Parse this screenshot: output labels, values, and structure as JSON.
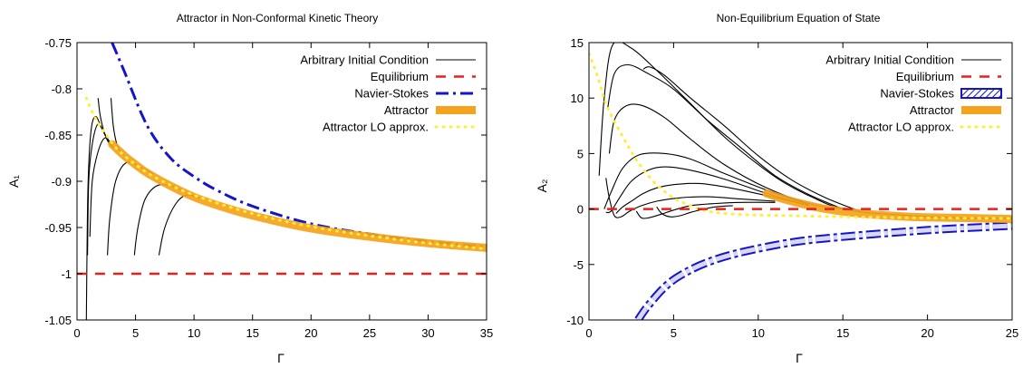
{
  "colors": {
    "curve": "#000000",
    "equilibrium": "#e8201c",
    "navier_stokes": "#1414c8",
    "attractor": "#f4a31c",
    "lo_approx": "#ffee33"
  },
  "chart_data": [
    {
      "type": "line",
      "title": "Attractor in Non-Conformal Kinetic Theory",
      "xlabel": "Γ",
      "ylabel": "A₁",
      "xlim": [
        0,
        35
      ],
      "ylim": [
        -1.05,
        -0.75
      ],
      "xticks": [
        0,
        5,
        10,
        15,
        20,
        25,
        30,
        35
      ],
      "yticks": [
        -1.05,
        -1,
        -0.95,
        -0.9,
        -0.85,
        -0.8,
        -0.75
      ],
      "xtick_labels": [
        "0",
        "5",
        "10",
        "15",
        "20",
        "25",
        "30",
        "35"
      ],
      "ytick_labels": [
        "-1.05",
        "-1",
        "-0.95",
        "-0.9",
        "-0.85",
        "-0.8",
        "-0.75"
      ],
      "legend_position": "top-right",
      "grid": false,
      "legend": [
        "Arbitrary Initial Condition",
        "Equilibrium",
        "Navier-Stokes",
        "Attractor",
        "Attractor LO approx."
      ],
      "series": [
        {
          "name": "Equilibrium",
          "style": "equilibrium",
          "x": [
            0,
            35
          ],
          "y": [
            -1,
            -1
          ]
        },
        {
          "name": "Navier-Stokes",
          "style": "navier_stokes",
          "x": [
            3.0,
            4,
            6,
            8,
            10,
            12,
            15,
            20,
            25,
            30,
            35
          ],
          "y": [
            -0.75,
            -0.78,
            -0.84,
            -0.875,
            -0.895,
            -0.91,
            -0.927,
            -0.946,
            -0.957,
            -0.965,
            -0.971
          ]
        },
        {
          "name": "Attractor",
          "style": "attractor",
          "x": [
            3.0,
            4,
            5,
            6,
            8,
            10,
            12,
            15,
            20,
            25,
            30,
            35
          ],
          "y": [
            -0.86,
            -0.872,
            -0.882,
            -0.891,
            -0.905,
            -0.917,
            -0.926,
            -0.937,
            -0.951,
            -0.96,
            -0.967,
            -0.972
          ]
        },
        {
          "name": "Attractor LO approx.",
          "style": "lo_approx",
          "x": [
            0.8,
            1.5,
            2.5,
            3.5,
            5,
            7,
            10,
            15,
            20,
            25,
            30,
            35
          ],
          "y": [
            -0.81,
            -0.83,
            -0.85,
            -0.866,
            -0.882,
            -0.898,
            -0.915,
            -0.935,
            -0.949,
            -0.959,
            -0.967,
            -0.973
          ]
        },
        {
          "name": "Arbitrary Initial Condition",
          "style": "curve",
          "x": [
            0.8,
            0.85,
            0.95,
            1.2,
            1.6,
            2.2,
            3.0
          ],
          "y": [
            -1.05,
            -0.98,
            -0.9,
            -0.845,
            -0.83,
            -0.845,
            -0.862
          ]
        },
        {
          "name": "Arbitrary Initial Condition",
          "style": "curve",
          "x": [
            0.9,
            1.0,
            1.3,
            1.8,
            2.4,
            3.0
          ],
          "y": [
            -0.98,
            -0.9,
            -0.86,
            -0.838,
            -0.85,
            -0.862
          ]
        },
        {
          "name": "Arbitrary Initial Condition",
          "style": "curve",
          "x": [
            1.1,
            1.3,
            1.8,
            2.4,
            3.0
          ],
          "y": [
            -0.96,
            -0.9,
            -0.868,
            -0.853,
            -0.862
          ]
        },
        {
          "name": "Arbitrary Initial Condition",
          "style": "curve",
          "x": [
            1.8,
            2.0,
            2.4,
            2.8,
            3.2
          ],
          "y": [
            -0.81,
            -0.83,
            -0.85,
            -0.86,
            -0.864
          ]
        },
        {
          "name": "Arbitrary Initial Condition",
          "style": "curve",
          "x": [
            2.9,
            3.1,
            3.4,
            3.7,
            4.0
          ],
          "y": [
            -0.81,
            -0.84,
            -0.86,
            -0.868,
            -0.872
          ]
        },
        {
          "name": "Arbitrary Initial Condition",
          "style": "curve",
          "x": [
            2.6,
            2.8,
            3.3,
            4.2,
            5.5,
            6.5
          ],
          "y": [
            -0.98,
            -0.94,
            -0.9,
            -0.88,
            -0.885,
            -0.892
          ]
        },
        {
          "name": "Arbitrary Initial Condition",
          "style": "curve",
          "x": [
            4.9,
            5.2,
            5.8,
            6.8,
            8.0,
            9.0
          ],
          "y": [
            -0.98,
            -0.95,
            -0.92,
            -0.905,
            -0.905,
            -0.91
          ]
        },
        {
          "name": "Arbitrary Initial Condition",
          "style": "curve",
          "x": [
            7.0,
            7.5,
            8.4,
            9.3,
            10.5
          ],
          "y": [
            -0.98,
            -0.95,
            -0.925,
            -0.915,
            -0.918
          ]
        }
      ]
    },
    {
      "type": "line",
      "title": "Non-Equilibrium Equation of State",
      "xlabel": "Γ",
      "ylabel": "A₂",
      "xlim": [
        0,
        25
      ],
      "ylim": [
        -10,
        15
      ],
      "xticks": [
        0,
        5,
        10,
        15,
        20,
        25
      ],
      "yticks": [
        -10,
        -5,
        0,
        5,
        10,
        15
      ],
      "xtick_labels": [
        "0",
        "5",
        "10",
        "15",
        "20",
        "25"
      ],
      "ytick_labels": [
        "-10",
        "-5",
        "0",
        "5",
        "10",
        "15"
      ],
      "legend_position": "top-right",
      "grid": false,
      "legend": [
        "Arbitrary Initial Condition",
        "Equilibrium",
        "Navier-Stokes",
        "Attractor",
        "Attractor LO approx."
      ],
      "series": [
        {
          "name": "Equilibrium",
          "style": "equilibrium",
          "x": [
            0,
            25
          ],
          "y": [
            0,
            0
          ]
        },
        {
          "name": "Navier-Stokes",
          "style": "navier_stokes",
          "x": [
            2.9,
            3.5,
            4.5,
            5.5,
            7,
            9,
            12,
            15,
            20,
            25
          ],
          "y": [
            -10,
            -8.7,
            -7.0,
            -5.9,
            -4.8,
            -3.9,
            -3.0,
            -2.5,
            -1.9,
            -1.5
          ]
        },
        {
          "name": "Attractor",
          "style": "attractor",
          "x": [
            10.5,
            11.5,
            12.5,
            14,
            16,
            19,
            22,
            25
          ],
          "y": [
            1.4,
            0.9,
            0.5,
            0.0,
            -0.4,
            -0.7,
            -0.8,
            -0.9
          ]
        },
        {
          "name": "Attractor LO approx.",
          "style": "lo_approx",
          "x": [
            0,
            0.5,
            1,
            2,
            3,
            4,
            5,
            6,
            7,
            9,
            12,
            15,
            20,
            25
          ],
          "y": [
            14,
            12,
            9.5,
            6.5,
            4.0,
            2.2,
            1.0,
            0.3,
            -0.2,
            -0.5,
            -0.6,
            -0.7,
            -0.8,
            -0.85
          ]
        },
        {
          "name": "Arbitrary Initial Condition",
          "style": "curve",
          "x": [
            0.6,
            0.9,
            1.4,
            2.5,
            4,
            6,
            8,
            10,
            11.5,
            13,
            15,
            18,
            22,
            25
          ],
          "y": [
            3,
            10,
            14.8,
            14.5,
            12.5,
            9.5,
            6.5,
            4,
            2.4,
            1.2,
            0,
            -0.5,
            -0.8,
            -0.85
          ]
        },
        {
          "name": "Arbitrary Initial Condition",
          "style": "curve",
          "x": [
            1.1,
            1.5,
            2.3,
            3.5,
            5,
            7,
            9,
            11,
            13,
            15
          ],
          "y": [
            9,
            12.2,
            13.0,
            12.2,
            10.8,
            8.0,
            5.5,
            3.0,
            1.3,
            0
          ]
        },
        {
          "name": "Arbitrary Initial Condition",
          "style": "curve",
          "x": [
            3.2,
            3.6,
            4.5,
            6,
            8,
            10,
            12,
            14,
            16
          ],
          "y": [
            12.6,
            12.8,
            12.0,
            10.0,
            7.5,
            4.8,
            2.6,
            1.0,
            -0.2
          ]
        },
        {
          "name": "Arbitrary Initial Condition",
          "style": "curve",
          "x": [
            1.2,
            1.5,
            2.2,
            3.2,
            4.5,
            6.0,
            8.0,
            10.5,
            13,
            15
          ],
          "y": [
            5,
            8.0,
            9.3,
            9.3,
            8.2,
            6.3,
            4.0,
            1.9,
            0.5,
            0
          ]
        },
        {
          "name": "Arbitrary Initial Condition",
          "style": "curve",
          "x": [
            0.9,
            1.3,
            2.0,
            3.0,
            4.5,
            6,
            8,
            10.5,
            13
          ],
          "y": [
            0,
            1.5,
            3.7,
            4.9,
            5.0,
            4.5,
            3.2,
            1.7,
            0.4
          ]
        },
        {
          "name": "Arbitrary Initial Condition",
          "style": "curve",
          "x": [
            1.0,
            1.3,
            1.8,
            2.5,
            3.5,
            4.5,
            6,
            8,
            10.5,
            13
          ],
          "y": [
            -0.3,
            -0.2,
            1.0,
            2.5,
            3.5,
            3.8,
            3.5,
            2.7,
            1.4,
            0.3
          ]
        },
        {
          "name": "Arbitrary Initial Condition",
          "style": "curve",
          "x": [
            1.6,
            2.0,
            2.6,
            3.2,
            4.0,
            5.0,
            6.5,
            8.0,
            10.5,
            13
          ],
          "y": [
            -0.4,
            0.2,
            0.8,
            1.4,
            1.9,
            2.2,
            2.3,
            2.0,
            1.2,
            0.3
          ]
        },
        {
          "name": "Arbitrary Initial Condition",
          "style": "curve",
          "x": [
            1.0,
            1.2,
            1.5,
            1.9,
            2.4,
            3.1,
            4.0,
            5.3,
            7,
            9,
            11
          ],
          "y": [
            2.8,
            1.0,
            -0.6,
            -0.7,
            -0.2,
            0.3,
            0.7,
            1.0,
            1.1,
            0.9,
            0.7
          ]
        },
        {
          "name": "Arbitrary Initial Condition",
          "style": "curve",
          "x": [
            2.8,
            3.1,
            3.5,
            4.2,
            5.0,
            6.0,
            7.5,
            9,
            11
          ],
          "y": [
            -0.2,
            -0.8,
            -0.8,
            -0.5,
            -0.1,
            0.3,
            0.5,
            0.6,
            0.6
          ]
        },
        {
          "name": "Arbitrary Initial Condition",
          "style": "curve",
          "x": [
            4.0,
            4.3,
            4.8,
            5.4,
            6.0,
            6.8,
            7.5,
            8.5
          ],
          "y": [
            0.2,
            -0.4,
            -0.7,
            -0.6,
            -0.3,
            0.0,
            0.2,
            0.3
          ]
        }
      ]
    }
  ]
}
